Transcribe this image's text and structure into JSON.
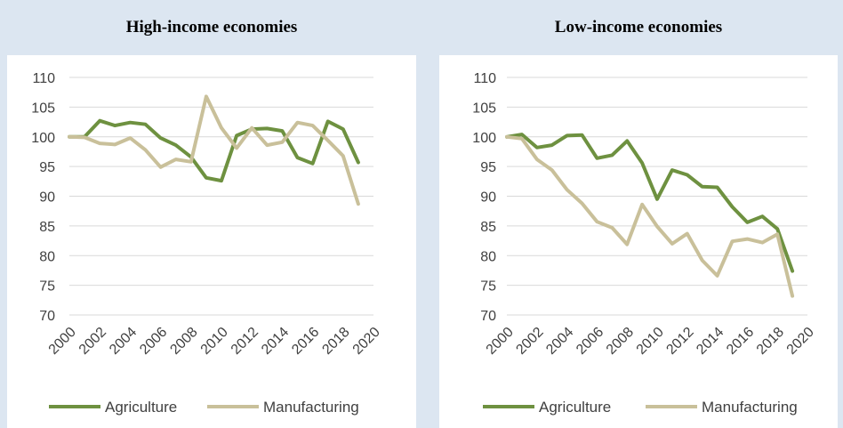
{
  "colors": {
    "agriculture": "#6e9140",
    "manufacturing": "#c9c09a",
    "grid": "#d9d9d9",
    "text": "#404040"
  },
  "chart_data": [
    {
      "type": "line",
      "title": "High-income economies",
      "xlabel": "",
      "ylabel": "",
      "ylim": [
        70,
        110
      ],
      "yticks": [
        "70",
        "75",
        "80",
        "85",
        "90",
        "95",
        "100",
        "105",
        "110"
      ],
      "xticks": [
        "2000",
        "2002",
        "2004",
        "2006",
        "2008",
        "2010",
        "2012",
        "2014",
        "2016",
        "2018",
        "2020"
      ],
      "grid": true,
      "legend": "bottom",
      "x": [
        2000,
        2001,
        2002,
        2003,
        2004,
        2005,
        2006,
        2007,
        2008,
        2009,
        2010,
        2011,
        2012,
        2013,
        2014,
        2015,
        2016,
        2017,
        2018,
        2019
      ],
      "series": [
        {
          "name": "Agriculture",
          "values": [
            100,
            100,
            102.7,
            101.9,
            102.4,
            102.1,
            99.8,
            98.6,
            96.6,
            93.1,
            92.6,
            100.2,
            101.3,
            101.4,
            101.0,
            96.5,
            95.5,
            102.6,
            101.3,
            95.7
          ]
        },
        {
          "name": "Manufacturing",
          "values": [
            100,
            99.9,
            98.9,
            98.7,
            99.8,
            97.8,
            94.9,
            96.2,
            95.8,
            106.8,
            101.5,
            98.1,
            101.5,
            98.6,
            99.1,
            102.4,
            101.9,
            99.4,
            96.8,
            88.7
          ]
        }
      ]
    },
    {
      "type": "line",
      "title": "Low-income economies",
      "xlabel": "",
      "ylabel": "",
      "ylim": [
        70,
        110
      ],
      "yticks": [
        "70",
        "75",
        "80",
        "85",
        "90",
        "95",
        "100",
        "105",
        "110"
      ],
      "xticks": [
        "2000",
        "2002",
        "2004",
        "2006",
        "2008",
        "2010",
        "2012",
        "2014",
        "2016",
        "2018",
        "2020"
      ],
      "grid": true,
      "legend": "bottom",
      "x": [
        2000,
        2001,
        2002,
        2003,
        2004,
        2005,
        2006,
        2007,
        2008,
        2009,
        2010,
        2011,
        2012,
        2013,
        2014,
        2015,
        2016,
        2017,
        2018,
        2019
      ],
      "series": [
        {
          "name": "Agriculture",
          "values": [
            100,
            100.4,
            98.2,
            98.6,
            100.2,
            100.3,
            96.4,
            96.9,
            99.3,
            95.6,
            89.5,
            94.4,
            93.6,
            91.6,
            91.5,
            88.2,
            85.6,
            86.6,
            84.5,
            77.4
          ]
        },
        {
          "name": "Manufacturing",
          "values": [
            100,
            99.7,
            96.2,
            94.4,
            91.1,
            88.8,
            85.7,
            84.7,
            81.9,
            88.6,
            84.9,
            82.0,
            83.7,
            79.2,
            76.6,
            82.4,
            82.8,
            82.2,
            83.6,
            73.2
          ]
        }
      ]
    }
  ]
}
